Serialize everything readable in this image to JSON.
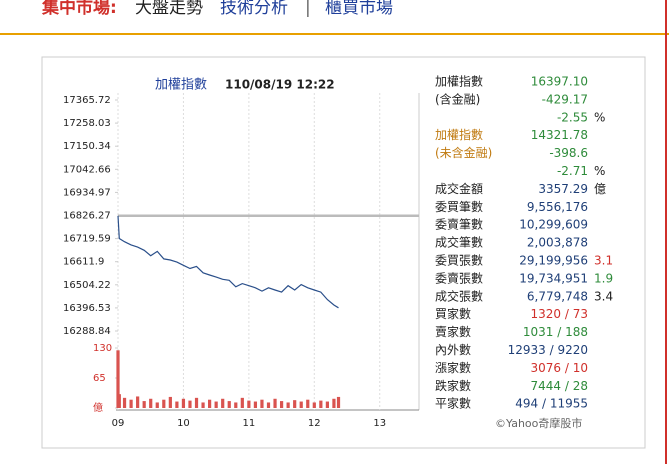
{
  "header": {
    "title": "集中市場:",
    "subtitle": "大盤走勢",
    "links": [
      "技術分析",
      "櫃買市場"
    ],
    "separator": "|"
  },
  "chart_data": {
    "type": "line",
    "title": "加權指數",
    "timestamp": "110/08/19 12:22",
    "color": "#2a4f8a",
    "x": [
      9.0,
      9.02,
      9.1,
      9.2,
      9.3,
      9.4,
      9.5,
      9.6,
      9.7,
      9.8,
      9.9,
      10.0,
      10.1,
      10.2,
      10.3,
      10.4,
      10.5,
      10.6,
      10.7,
      10.8,
      10.9,
      11.0,
      11.1,
      11.2,
      11.3,
      11.4,
      11.5,
      11.6,
      11.7,
      11.8,
      11.9,
      12.0,
      12.1,
      12.2,
      12.3,
      12.37
    ],
    "values": [
      16826,
      16720,
      16705,
      16690,
      16680,
      16665,
      16640,
      16660,
      16625,
      16620,
      16610,
      16595,
      16580,
      16590,
      16560,
      16550,
      16540,
      16530,
      16525,
      16495,
      16510,
      16500,
      16490,
      16475,
      16490,
      16480,
      16470,
      16500,
      16480,
      16505,
      16490,
      16480,
      16470,
      16435,
      16410,
      16397.1
    ],
    "xlim": [
      9,
      13.6
    ],
    "xticks": [
      {
        "value": 9,
        "label": "09"
      },
      10,
      11,
      12,
      13
    ],
    "ylim": [
      16288.84,
      17365.72
    ],
    "yticks": [
      17365.72,
      17258.03,
      17150.34,
      17042.66,
      16934.97,
      16826.27,
      16719.59,
      16611.9,
      16504.22,
      16396.53,
      16288.84
    ],
    "volume": {
      "color": "#d9534f",
      "values": [
        125,
        30,
        22,
        18,
        25,
        15,
        20,
        12,
        18,
        24,
        14,
        20,
        16,
        22,
        12,
        18,
        14,
        20,
        15,
        12,
        22,
        16,
        14,
        18,
        12,
        20,
        15,
        12,
        17,
        14,
        18,
        12,
        16,
        14,
        20,
        24
      ],
      "ylim": [
        0,
        130
      ],
      "yticks": [
        {
          "value": 0,
          "label": "億"
        },
        65,
        130
      ]
    }
  },
  "stats": {
    "rows": [
      {
        "label": "加權指數",
        "value": "16397.10",
        "color": "#2e8b3a"
      },
      {
        "label": "(含金融)",
        "value": "-429.17",
        "color": "#2e8b3a"
      },
      {
        "value": "-2.55",
        "extra": "%",
        "color": "#2e8b3a"
      },
      {
        "label": "加權指數",
        "value": "14321.78",
        "color": "#2e8b3a",
        "label_color": "#c07a10"
      },
      {
        "label": "(未含金融)",
        "value": "-398.6",
        "color": "#2e8b3a",
        "label_color": "#c07a10"
      },
      {
        "value": "-2.71",
        "extra": "%",
        "color": "#2e8b3a"
      },
      {
        "label": "成交金額",
        "value": "3357.29",
        "extra": "億",
        "color": "#1f3f77"
      },
      {
        "label": "委買筆數",
        "value": "9,556,176",
        "color": "#1f3f77"
      },
      {
        "label": "委賣筆數",
        "value": "10,299,609",
        "color": "#1f3f77"
      },
      {
        "label": "成交筆數",
        "value": "2,003,878",
        "color": "#1f3f77"
      },
      {
        "label": "委買張數",
        "value": "29,199,956",
        "extra": "3.1",
        "color": "#1f3f77",
        "extra_color": "#d0302b"
      },
      {
        "label": "委賣張數",
        "value": "19,734,951",
        "extra": "1.9",
        "color": "#1f3f77",
        "extra_color": "#2e8b3a"
      },
      {
        "label": "成交張數",
        "value": "6,779,748",
        "extra": "3.4",
        "color": "#1f3f77"
      },
      {
        "label": "買家數",
        "value": "1320 / 73",
        "color": "#d0302b"
      },
      {
        "label": "賣家數",
        "value": "1031 / 188",
        "color": "#2e8b3a"
      },
      {
        "label": "內外數",
        "value": "12933 / 9220",
        "color": "#1f3f77"
      },
      {
        "label": "漲家數",
        "value": "3076 / 10",
        "color": "#d0302b"
      },
      {
        "label": "跌家數",
        "value": "7444 / 28",
        "color": "#2e8b3a"
      },
      {
        "label": "平家數",
        "value": "494 / 11955",
        "color": "#1f3f77"
      }
    ],
    "credit": "©Yahoo奇摩股市"
  }
}
